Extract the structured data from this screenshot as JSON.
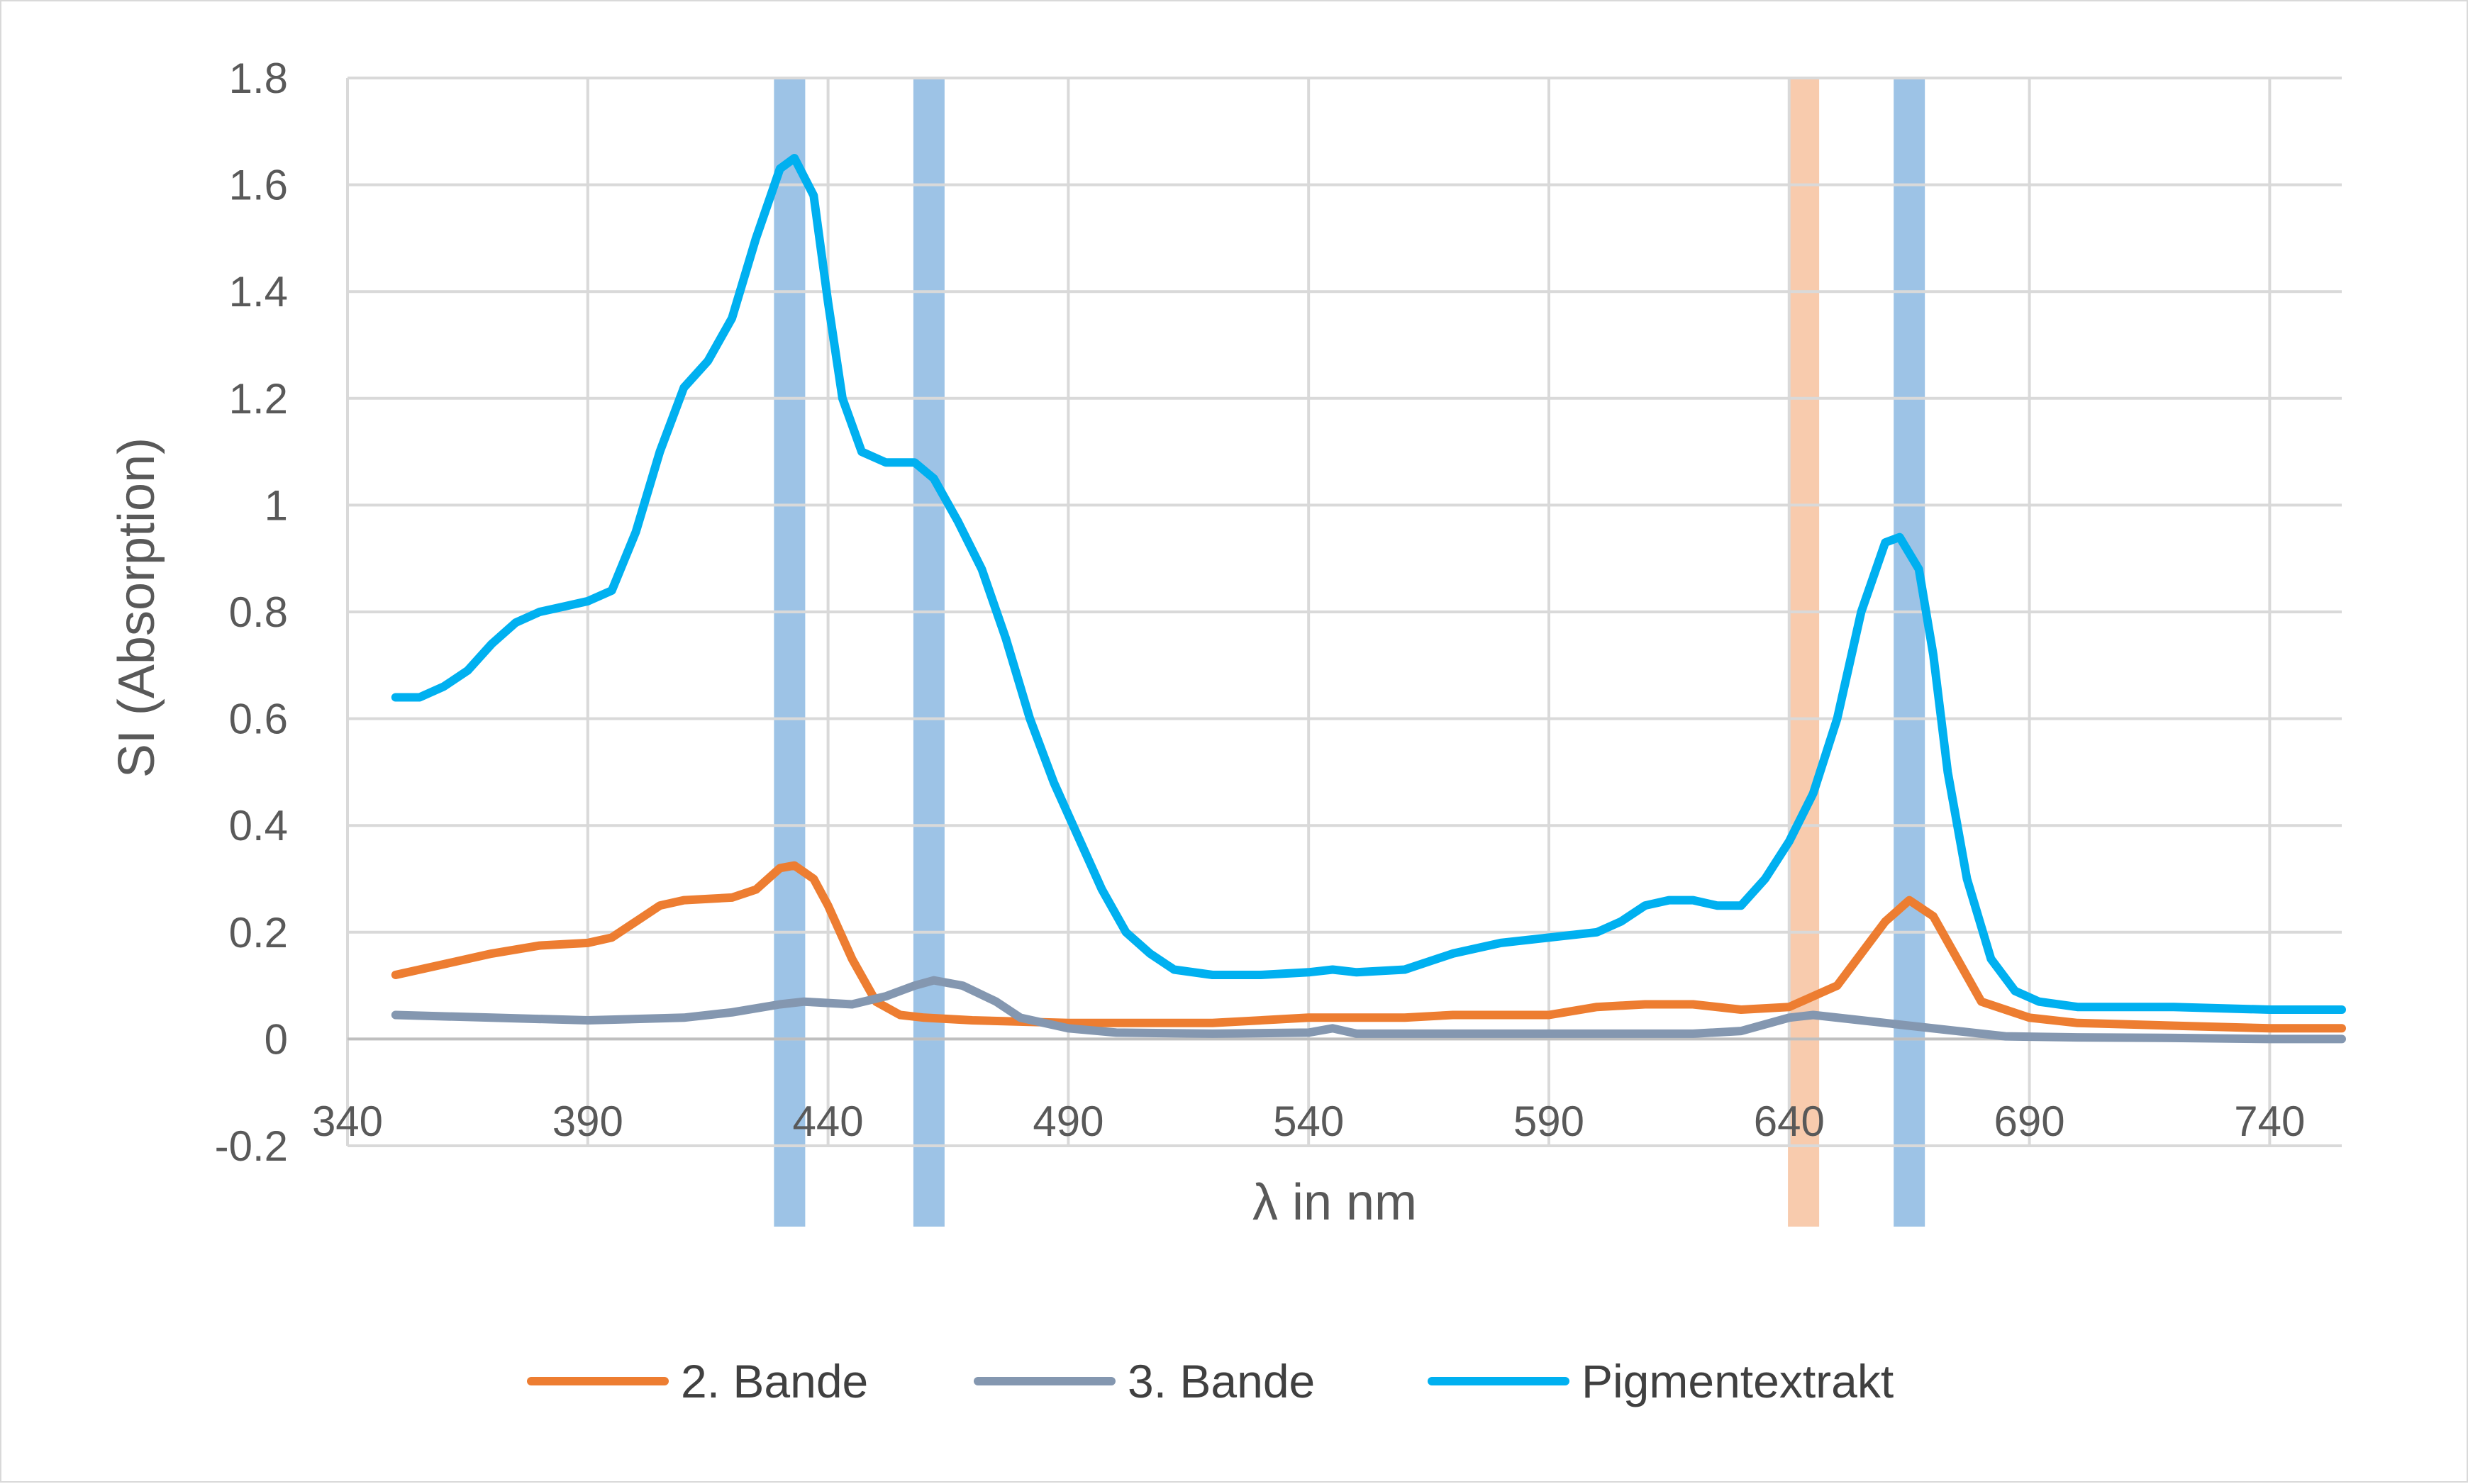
{
  "chart_data": {
    "type": "line",
    "title": "",
    "xlabel": "λ in nm",
    "ylabel": "SI (Absorption)",
    "xlim": [
      340,
      755
    ],
    "ylim": [
      -0.2,
      1.8
    ],
    "x_ticks": [
      340,
      390,
      440,
      490,
      540,
      590,
      640,
      690,
      740
    ],
    "x_tick_labels": [
      "340",
      "390",
      "440",
      "490",
      "540",
      "590",
      "640",
      "690",
      "740"
    ],
    "y_ticks": [
      -0.2,
      0,
      0.2,
      0.4,
      0.6,
      0.8,
      1,
      1.2,
      1.4,
      1.6,
      1.8
    ],
    "y_tick_labels": [
      "-0.2",
      "0",
      "0.2",
      "0.4",
      "0.6",
      "0.8",
      "1",
      "1.2",
      "1.4",
      "1.6",
      "1.8"
    ],
    "grid": true,
    "legend_position": "bottom",
    "highlight_bands": [
      {
        "x": 432,
        "color": "#9dc3e6"
      },
      {
        "x": 461,
        "color": "#9dc3e6"
      },
      {
        "x": 643,
        "color": "#f8cbad"
      },
      {
        "x": 665,
        "color": "#9dc3e6"
      }
    ],
    "series": [
      {
        "name": "2. Bande",
        "color": "#ed7d31",
        "points": [
          [
            350,
            0.12
          ],
          [
            360,
            0.14
          ],
          [
            370,
            0.16
          ],
          [
            380,
            0.175
          ],
          [
            390,
            0.18
          ],
          [
            395,
            0.19
          ],
          [
            400,
            0.22
          ],
          [
            405,
            0.25
          ],
          [
            410,
            0.26
          ],
          [
            420,
            0.265
          ],
          [
            425,
            0.28
          ],
          [
            430,
            0.32
          ],
          [
            433,
            0.325
          ],
          [
            437,
            0.3
          ],
          [
            440,
            0.25
          ],
          [
            445,
            0.15
          ],
          [
            450,
            0.07
          ],
          [
            455,
            0.045
          ],
          [
            460,
            0.04
          ],
          [
            470,
            0.035
          ],
          [
            490,
            0.03
          ],
          [
            520,
            0.03
          ],
          [
            540,
            0.04
          ],
          [
            545,
            0.04
          ],
          [
            560,
            0.04
          ],
          [
            570,
            0.045
          ],
          [
            590,
            0.045
          ],
          [
            600,
            0.06
          ],
          [
            610,
            0.065
          ],
          [
            620,
            0.065
          ],
          [
            630,
            0.055
          ],
          [
            640,
            0.06
          ],
          [
            650,
            0.1
          ],
          [
            655,
            0.16
          ],
          [
            660,
            0.22
          ],
          [
            665,
            0.26
          ],
          [
            670,
            0.23
          ],
          [
            675,
            0.15
          ],
          [
            680,
            0.07
          ],
          [
            690,
            0.04
          ],
          [
            700,
            0.03
          ],
          [
            720,
            0.025
          ],
          [
            740,
            0.02
          ],
          [
            755,
            0.02
          ]
        ]
      },
      {
        "name": "3. Bande",
        "color": "#8497b0",
        "points": [
          [
            350,
            0.045
          ],
          [
            370,
            0.04
          ],
          [
            390,
            0.035
          ],
          [
            410,
            0.04
          ],
          [
            420,
            0.05
          ],
          [
            430,
            0.065
          ],
          [
            435,
            0.07
          ],
          [
            445,
            0.065
          ],
          [
            452,
            0.08
          ],
          [
            458,
            0.1
          ],
          [
            462,
            0.11
          ],
          [
            468,
            0.1
          ],
          [
            475,
            0.07
          ],
          [
            480,
            0.04
          ],
          [
            490,
            0.02
          ],
          [
            500,
            0.012
          ],
          [
            520,
            0.01
          ],
          [
            540,
            0.012
          ],
          [
            545,
            0.02
          ],
          [
            550,
            0.01
          ],
          [
            580,
            0.01
          ],
          [
            600,
            0.01
          ],
          [
            620,
            0.01
          ],
          [
            630,
            0.015
          ],
          [
            640,
            0.04
          ],
          [
            645,
            0.045
          ],
          [
            655,
            0.035
          ],
          [
            665,
            0.025
          ],
          [
            675,
            0.015
          ],
          [
            685,
            0.005
          ],
          [
            700,
            0.003
          ],
          [
            720,
            0.002
          ],
          [
            740,
            0.0
          ],
          [
            755,
            0.0
          ]
        ]
      },
      {
        "name": "Pigmentextrakt",
        "color": "#00b0f0",
        "points": [
          [
            350,
            0.64
          ],
          [
            355,
            0.64
          ],
          [
            360,
            0.66
          ],
          [
            365,
            0.69
          ],
          [
            370,
            0.74
          ],
          [
            375,
            0.78
          ],
          [
            380,
            0.8
          ],
          [
            385,
            0.81
          ],
          [
            390,
            0.82
          ],
          [
            395,
            0.84
          ],
          [
            400,
            0.95
          ],
          [
            405,
            1.1
          ],
          [
            410,
            1.22
          ],
          [
            415,
            1.27
          ],
          [
            420,
            1.35
          ],
          [
            425,
            1.5
          ],
          [
            430,
            1.63
          ],
          [
            433,
            1.65
          ],
          [
            437,
            1.58
          ],
          [
            440,
            1.38
          ],
          [
            443,
            1.2
          ],
          [
            447,
            1.1
          ],
          [
            452,
            1.08
          ],
          [
            458,
            1.08
          ],
          [
            462,
            1.05
          ],
          [
            467,
            0.97
          ],
          [
            472,
            0.88
          ],
          [
            477,
            0.75
          ],
          [
            482,
            0.6
          ],
          [
            487,
            0.48
          ],
          [
            492,
            0.38
          ],
          [
            497,
            0.28
          ],
          [
            502,
            0.2
          ],
          [
            507,
            0.16
          ],
          [
            512,
            0.13
          ],
          [
            520,
            0.12
          ],
          [
            530,
            0.12
          ],
          [
            540,
            0.125
          ],
          [
            545,
            0.13
          ],
          [
            550,
            0.125
          ],
          [
            560,
            0.13
          ],
          [
            570,
            0.16
          ],
          [
            580,
            0.18
          ],
          [
            590,
            0.19
          ],
          [
            600,
            0.2
          ],
          [
            605,
            0.22
          ],
          [
            610,
            0.25
          ],
          [
            615,
            0.26
          ],
          [
            620,
            0.26
          ],
          [
            625,
            0.25
          ],
          [
            630,
            0.25
          ],
          [
            635,
            0.3
          ],
          [
            640,
            0.37
          ],
          [
            645,
            0.46
          ],
          [
            650,
            0.6
          ],
          [
            655,
            0.8
          ],
          [
            660,
            0.93
          ],
          [
            663,
            0.94
          ],
          [
            667,
            0.88
          ],
          [
            670,
            0.72
          ],
          [
            673,
            0.5
          ],
          [
            677,
            0.3
          ],
          [
            682,
            0.15
          ],
          [
            687,
            0.09
          ],
          [
            692,
            0.07
          ],
          [
            700,
            0.06
          ],
          [
            720,
            0.06
          ],
          [
            740,
            0.055
          ],
          [
            755,
            0.055
          ]
        ]
      }
    ]
  }
}
